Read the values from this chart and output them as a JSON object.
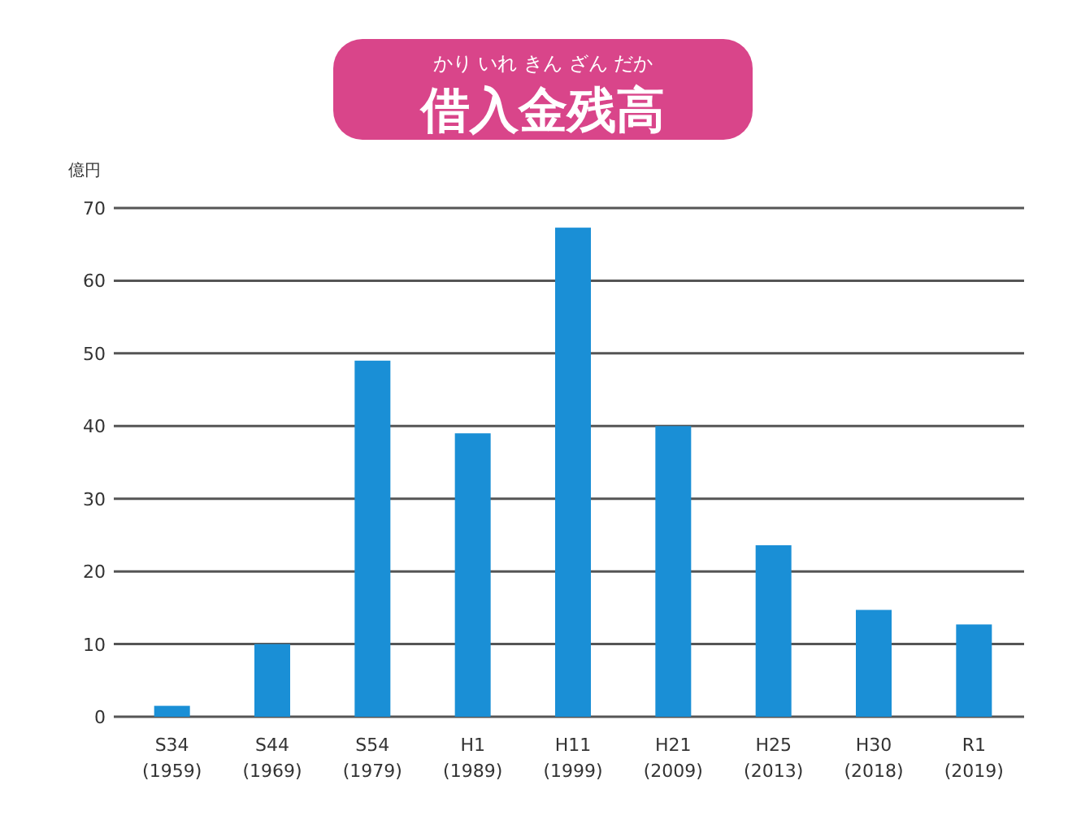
{
  "chart_data": {
    "type": "bar",
    "title": "借入金残高",
    "subtitle": "かり いれ きん ざん だか",
    "ylabel": "億円",
    "categories": [
      "S34\n(1959)",
      "S44\n(1969)",
      "S54\n(1979)",
      "H1\n(1989)",
      "H11\n(1999)",
      "H21\n(2009)",
      "H25\n(2013)",
      "H30\n(2018)",
      "R1\n(2019)"
    ],
    "values": [
      1.5,
      10,
      49,
      39,
      67.3,
      40,
      23.6,
      14.7,
      12.7
    ],
    "color": "#1a8fd6",
    "ylim": [
      0,
      70
    ],
    "yticks": [
      0,
      10,
      20,
      30,
      40,
      50,
      60,
      70
    ],
    "grid": "y"
  }
}
